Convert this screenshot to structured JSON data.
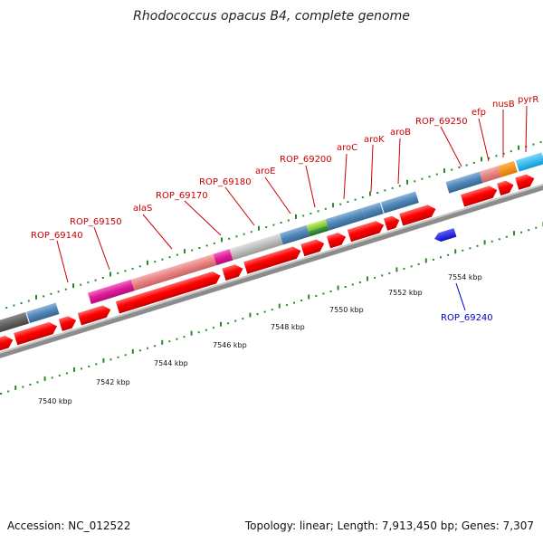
{
  "title": "Rhodococcus opacus B4, complete genome",
  "footer": {
    "accession": "Accession: NC_012522",
    "summary": "Topology: linear; Length: 7,913,450 bp; Genes: 7,307"
  },
  "scale_labels": [
    "7540 kbp",
    "7542 kbp",
    "7544 kbp",
    "7546 kbp",
    "7548 kbp",
    "7550 kbp",
    "7552 kbp",
    "7554 kbp"
  ],
  "gene_labels": {
    "forward": [
      "ROP_69140",
      "ROP_69150",
      "alaS",
      "ROP_69170",
      "ROP_69180",
      "aroE",
      "ROP_69200",
      "aroC",
      "aroK",
      "aroB",
      "ROP_69250",
      "efp",
      "nusB",
      "pyrR"
    ],
    "reverse": [
      "ROP_69240"
    ]
  },
  "colors": {
    "cds": "#ff0000",
    "reverse_cds": "#1f1fd6",
    "steelblue": "#4f86b8",
    "salmon": "#e88282",
    "magenta": "#e0199b",
    "grey": "#bdbdbd",
    "darkgrey": "#636363",
    "lime": "#8fd130",
    "green": "#2e8b2e",
    "orange": "#ff8c00",
    "cyan": "#1ab8f0",
    "tick": "#2a8a2a",
    "forward_label": "#cc0000",
    "reverse_label": "#0000cc"
  }
}
